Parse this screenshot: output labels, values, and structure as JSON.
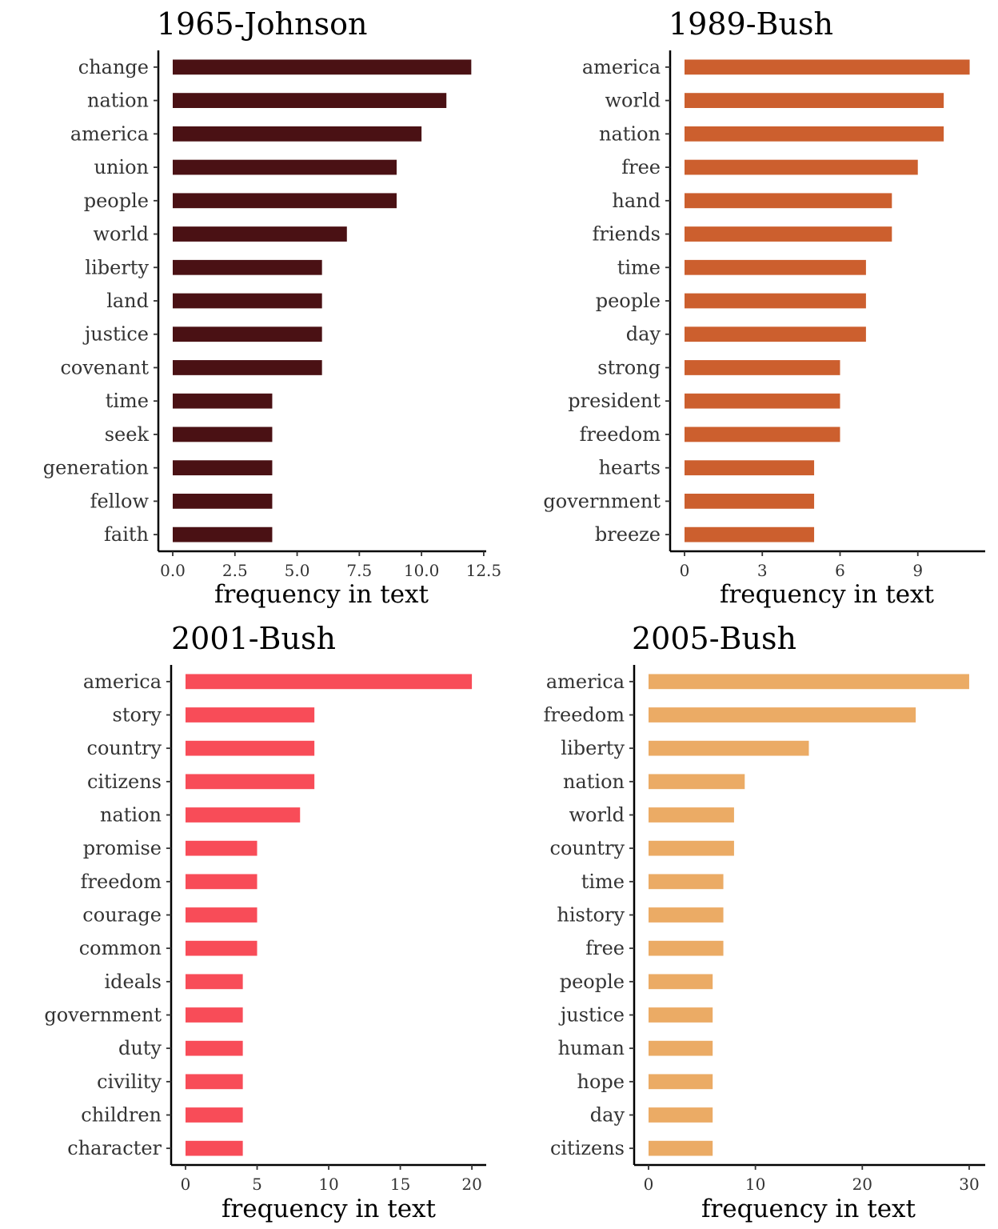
{
  "chart_data": [
    {
      "type": "bar",
      "orientation": "horizontal",
      "title": "1965-Johnson",
      "xlabel": "frequency in text",
      "ylabel": "",
      "color": "#4a1114",
      "categories": [
        "change",
        "nation",
        "america",
        "union",
        "people",
        "world",
        "liberty",
        "land",
        "justice",
        "covenant",
        "time",
        "seek",
        "generation",
        "fellow",
        "faith"
      ],
      "values": [
        12,
        11,
        10,
        9,
        9,
        7,
        6,
        6,
        6,
        6,
        4,
        4,
        4,
        4,
        4
      ],
      "xlim": [
        0,
        12.6
      ],
      "xticks": [
        0,
        2.5,
        5,
        7.5,
        10,
        12.5
      ],
      "xtick_labels": [
        "0.0",
        "2.5",
        "5.0",
        "7.5",
        "10.0",
        "12.5"
      ],
      "grid": false
    },
    {
      "type": "bar",
      "orientation": "horizontal",
      "title": "1989-Bush",
      "xlabel": "frequency in text",
      "ylabel": "",
      "color": "#cc5f2e",
      "categories": [
        "america",
        "world",
        "nation",
        "free",
        "hand",
        "friends",
        "time",
        "people",
        "day",
        "strong",
        "president",
        "freedom",
        "hearts",
        "government",
        "breeze"
      ],
      "values": [
        11,
        10,
        10,
        9,
        8,
        8,
        7,
        7,
        7,
        6,
        6,
        6,
        5,
        5,
        5
      ],
      "xlim": [
        0,
        11.6
      ],
      "xticks": [
        0,
        3,
        6,
        9
      ],
      "xtick_labels": [
        "0",
        "3",
        "6",
        "9"
      ],
      "grid": false
    },
    {
      "type": "bar",
      "orientation": "horizontal",
      "title": "2001-Bush",
      "xlabel": "frequency in text",
      "ylabel": "",
      "color": "#f84c58",
      "categories": [
        "america",
        "story",
        "country",
        "citizens",
        "nation",
        "promise",
        "freedom",
        "courage",
        "common",
        "ideals",
        "government",
        "duty",
        "civility",
        "children",
        "character"
      ],
      "values": [
        20,
        9,
        9,
        9,
        8,
        5,
        5,
        5,
        5,
        4,
        4,
        4,
        4,
        4,
        4
      ],
      "xlim": [
        0,
        21
      ],
      "xticks": [
        0,
        5,
        10,
        15,
        20
      ],
      "xtick_labels": [
        "0",
        "5",
        "10",
        "15",
        "20"
      ],
      "grid": false
    },
    {
      "type": "bar",
      "orientation": "horizontal",
      "title": "2005-Bush",
      "xlabel": "frequency in text",
      "ylabel": "",
      "color": "#ebab65",
      "categories": [
        "america",
        "freedom",
        "liberty",
        "nation",
        "world",
        "country",
        "time",
        "history",
        "free",
        "people",
        "justice",
        "human",
        "hope",
        "day",
        "citizens"
      ],
      "values": [
        30,
        25,
        15,
        9,
        8,
        8,
        7,
        7,
        7,
        6,
        6,
        6,
        6,
        6,
        6
      ],
      "xlim": [
        0,
        31.5
      ],
      "xticks": [
        0,
        10,
        20,
        30
      ],
      "xtick_labels": [
        "0",
        "10",
        "20",
        "30"
      ],
      "grid": false
    }
  ]
}
